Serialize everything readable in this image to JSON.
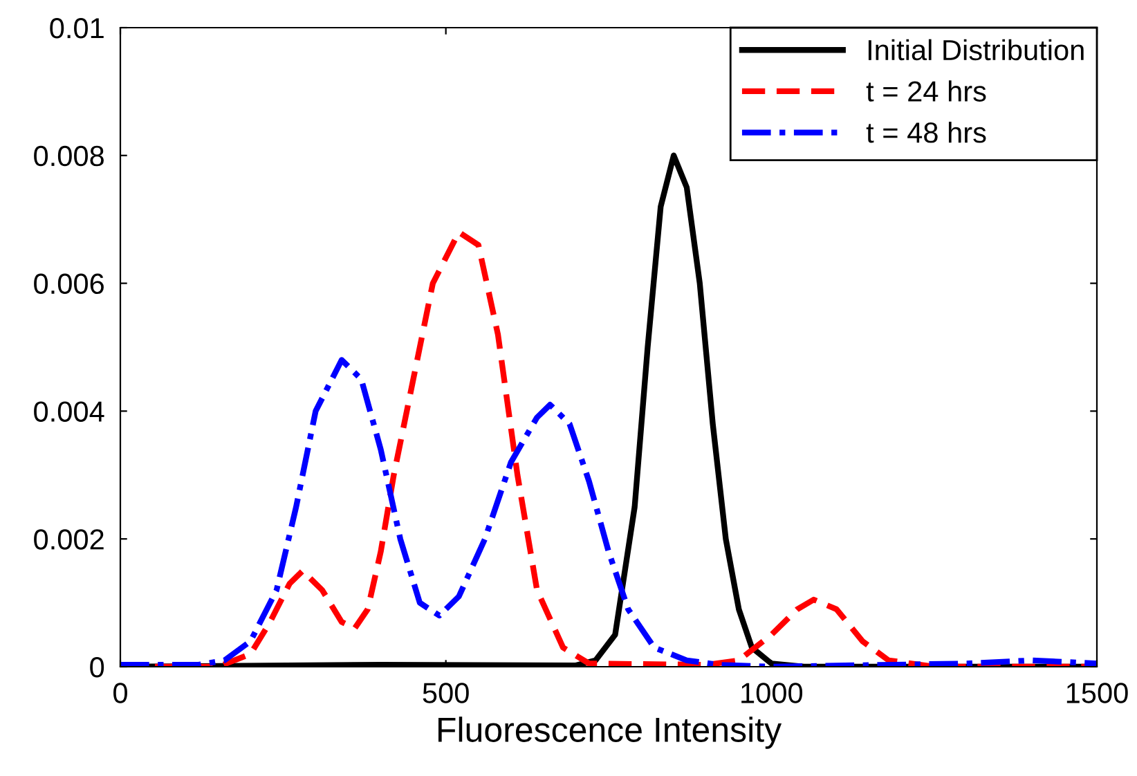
{
  "chart_data": {
    "type": "line",
    "xlabel": "Fluorescence Intensity",
    "xlim": [
      0,
      1500
    ],
    "xticks": [
      0,
      500,
      1000,
      1500
    ],
    "ylim": [
      0,
      0.01
    ],
    "yticks": [
      0,
      0.002,
      0.004,
      0.006,
      0.008,
      0.01
    ],
    "grid": false,
    "legend": "top right",
    "marker": "none",
    "series": [
      {
        "name": "Initial Distribution",
        "color": "#000000",
        "line_style": "solid",
        "x": [
          0,
          400,
          700,
          730,
          760,
          790,
          810,
          830,
          850,
          870,
          890,
          910,
          930,
          950,
          970,
          1000,
          1050,
          1500
        ],
        "values": [
          0,
          3e-05,
          2e-05,
          0.0001,
          0.0005,
          0.0025,
          0.005,
          0.0072,
          0.008,
          0.0075,
          0.006,
          0.0038,
          0.002,
          0.0009,
          0.0003,
          5e-05,
          0,
          0
        ]
      },
      {
        "name": "t = 24 hrs",
        "color": "#ff0000",
        "line_style": "dashed",
        "x": [
          0,
          150,
          200,
          230,
          260,
          280,
          310,
          340,
          360,
          380,
          400,
          420,
          450,
          480,
          520,
          550,
          580,
          610,
          640,
          680,
          720,
          900,
          950,
          1000,
          1040,
          1065,
          1100,
          1140,
          1180,
          1250,
          1500
        ],
        "values": [
          0,
          0,
          0.0002,
          0.0007,
          0.0013,
          0.0015,
          0.0012,
          0.0007,
          0.0006,
          0.0009,
          0.0018,
          0.003,
          0.0045,
          0.006,
          0.0068,
          0.0066,
          0.0052,
          0.003,
          0.0012,
          0.0003,
          5e-05,
          3e-05,
          0.0001,
          0.0005,
          0.0009,
          0.00105,
          0.0009,
          0.0004,
          0.0001,
          0,
          0
        ]
      },
      {
        "name": "t = 48 hrs",
        "color": "#0000ff",
        "line_style": "dashdot",
        "x": [
          0,
          120,
          160,
          200,
          240,
          270,
          300,
          340,
          370,
          400,
          430,
          460,
          490,
          520,
          560,
          600,
          640,
          660,
          690,
          720,
          750,
          780,
          820,
          870,
          920,
          1000,
          1300,
          1400,
          1500
        ],
        "values": [
          3e-05,
          3e-05,
          0.0001,
          0.0004,
          0.0012,
          0.0025,
          0.004,
          0.0048,
          0.0045,
          0.0034,
          0.002,
          0.001,
          0.0008,
          0.0011,
          0.002,
          0.0032,
          0.0039,
          0.0041,
          0.0038,
          0.0029,
          0.0018,
          0.0009,
          0.0003,
          0.0001,
          3e-05,
          0,
          5e-05,
          0.0001,
          5e-05
        ]
      }
    ]
  }
}
